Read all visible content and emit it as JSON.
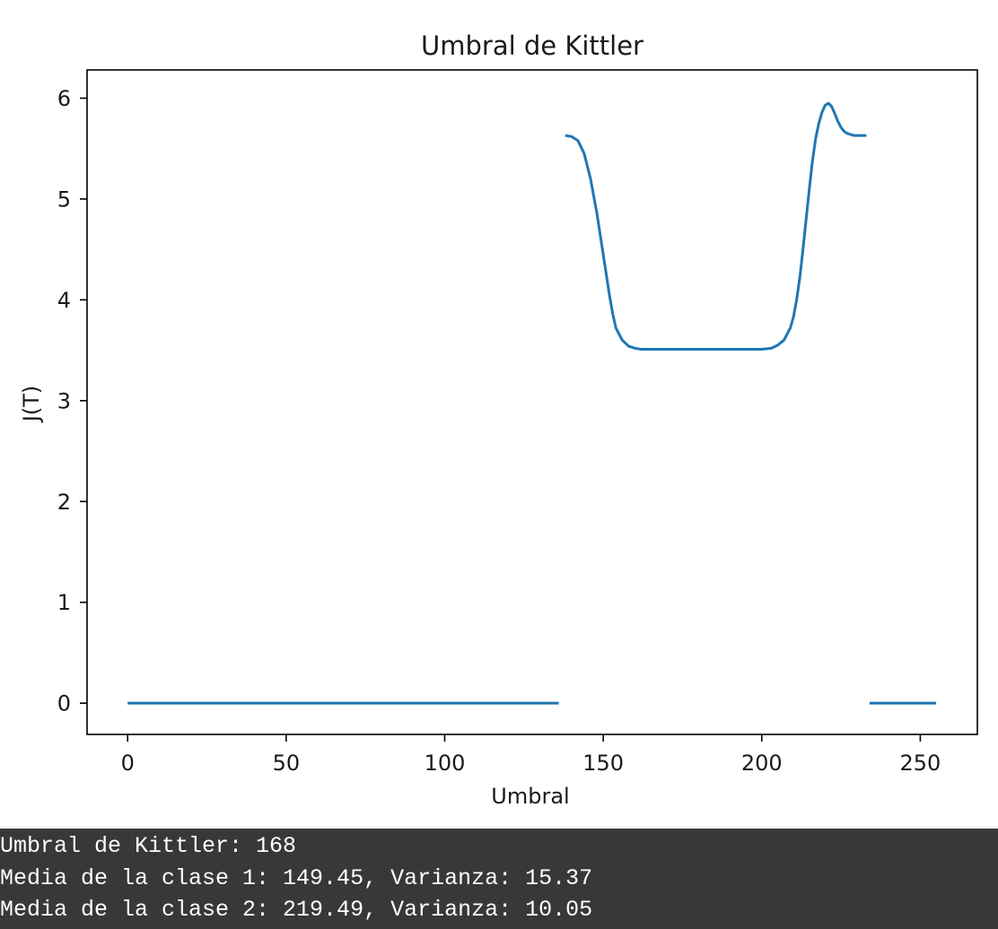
{
  "chart_data": {
    "type": "line",
    "title": "Umbral de Kittler",
    "xlabel": "Umbral",
    "ylabel": "J(T)",
    "xlim": [
      -12.8,
      268
    ],
    "ylim": [
      -0.31,
      6.28
    ],
    "xticks": [
      0,
      50,
      100,
      150,
      200,
      250
    ],
    "yticks": [
      0,
      1,
      2,
      3,
      4,
      5,
      6
    ],
    "grid": false,
    "color": "#1f77b4",
    "segments": [
      {
        "x": [
          0,
          136
        ],
        "y": [
          0,
          0
        ]
      },
      {
        "x": [
          138,
          140,
          142,
          144,
          146,
          148,
          150,
          152,
          153,
          154,
          156,
          158,
          160,
          162,
          165,
          170,
          180,
          190,
          200,
          203,
          205,
          207,
          209,
          210,
          211,
          212,
          213,
          214,
          215,
          216,
          217,
          218,
          219,
          220,
          221,
          222,
          223,
          224,
          225,
          226,
          227,
          228,
          229,
          230,
          231,
          232,
          233
        ],
        "y": [
          5.63,
          5.62,
          5.58,
          5.45,
          5.2,
          4.86,
          4.45,
          4.04,
          3.86,
          3.72,
          3.6,
          3.54,
          3.52,
          3.51,
          3.51,
          3.51,
          3.51,
          3.51,
          3.51,
          3.52,
          3.55,
          3.6,
          3.72,
          3.83,
          4.0,
          4.22,
          4.5,
          4.8,
          5.1,
          5.38,
          5.6,
          5.75,
          5.86,
          5.93,
          5.95,
          5.92,
          5.85,
          5.77,
          5.71,
          5.67,
          5.65,
          5.64,
          5.63,
          5.63,
          5.63,
          5.63,
          5.63
        ]
      },
      {
        "x": [
          234,
          255
        ],
        "y": [
          0,
          0
        ]
      }
    ]
  },
  "console": {
    "lines": [
      "Umbral de Kittler: 168",
      "Media de la clase 1: 149.45, Varianza: 15.37",
      "Media de la clase 2: 219.49, Varianza: 10.05"
    ]
  }
}
